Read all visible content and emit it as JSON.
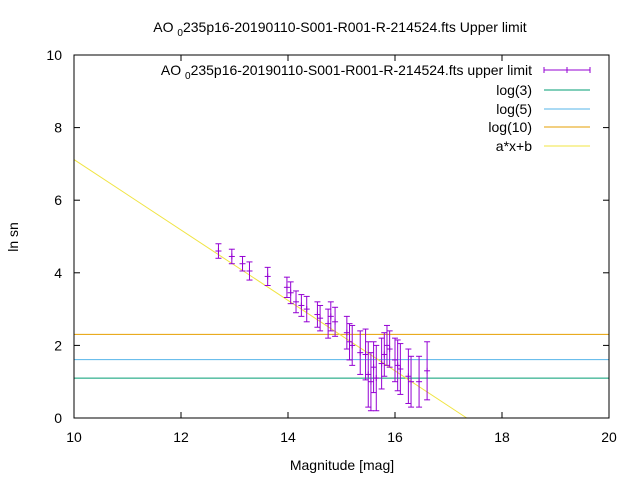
{
  "chart_data": {
    "type": "scatter",
    "title": {
      "prefix": "AO ",
      "subscript": "0",
      "rest": "235p16-20190110-S001-R001-R-214524.fts Upper limit"
    },
    "xlabel": "Magnitude [mag]",
    "ylabel": "ln sn",
    "xlim": [
      10,
      20
    ],
    "ylim": [
      0,
      10
    ],
    "x_ticks": [
      10,
      12,
      14,
      16,
      18,
      20
    ],
    "y_ticks": [
      0,
      2,
      4,
      6,
      8,
      10
    ],
    "grid": false,
    "legend_position": "top-right",
    "series": [
      {
        "name": {
          "prefix": "AO ",
          "subscript": "0",
          "rest": "235p16-20190110-S001-R001-R-214524.fts upper limit"
        },
        "kind": "errorbar",
        "color": "#9400d3",
        "points": [
          {
            "x": 12.7,
            "y": 4.6,
            "err": 0.2
          },
          {
            "x": 12.95,
            "y": 4.45,
            "err": 0.2
          },
          {
            "x": 13.15,
            "y": 4.25,
            "err": 0.2
          },
          {
            "x": 13.28,
            "y": 4.05,
            "err": 0.25
          },
          {
            "x": 13.62,
            "y": 3.9,
            "err": 0.25
          },
          {
            "x": 13.98,
            "y": 3.6,
            "err": 0.28
          },
          {
            "x": 14.05,
            "y": 3.45,
            "err": 0.3
          },
          {
            "x": 14.15,
            "y": 3.2,
            "err": 0.3
          },
          {
            "x": 14.25,
            "y": 3.1,
            "err": 0.3
          },
          {
            "x": 14.35,
            "y": 3.0,
            "err": 0.35
          },
          {
            "x": 14.55,
            "y": 2.85,
            "err": 0.35
          },
          {
            "x": 14.6,
            "y": 2.75,
            "err": 0.35
          },
          {
            "x": 14.75,
            "y": 2.6,
            "err": 0.4
          },
          {
            "x": 14.8,
            "y": 2.8,
            "err": 0.4
          },
          {
            "x": 14.88,
            "y": 2.65,
            "err": 0.4
          },
          {
            "x": 15.1,
            "y": 2.35,
            "err": 0.45
          },
          {
            "x": 15.15,
            "y": 2.1,
            "err": 0.5
          },
          {
            "x": 15.2,
            "y": 2.0,
            "err": 0.55
          },
          {
            "x": 15.35,
            "y": 1.8,
            "err": 0.6
          },
          {
            "x": 15.45,
            "y": 1.75,
            "err": 0.7
          },
          {
            "x": 15.5,
            "y": 1.2,
            "err": 0.9
          },
          {
            "x": 15.55,
            "y": 1.0,
            "err": 0.8
          },
          {
            "x": 15.6,
            "y": 1.4,
            "err": 0.7
          },
          {
            "x": 15.65,
            "y": 1.1,
            "err": 0.9
          },
          {
            "x": 15.75,
            "y": 1.5,
            "err": 0.7
          },
          {
            "x": 15.8,
            "y": 1.75,
            "err": 0.6
          },
          {
            "x": 15.85,
            "y": 2.0,
            "err": 0.55
          },
          {
            "x": 15.9,
            "y": 1.9,
            "err": 0.5
          },
          {
            "x": 16.0,
            "y": 1.6,
            "err": 0.6
          },
          {
            "x": 16.05,
            "y": 1.45,
            "err": 0.7
          },
          {
            "x": 16.1,
            "y": 1.35,
            "err": 0.7
          },
          {
            "x": 16.25,
            "y": 1.15,
            "err": 0.75
          },
          {
            "x": 16.3,
            "y": 1.0,
            "err": 0.7
          },
          {
            "x": 16.45,
            "y": 1.0,
            "err": 0.7
          },
          {
            "x": 16.6,
            "y": 1.3,
            "err": 0.8
          }
        ]
      },
      {
        "name": "log(3)",
        "kind": "hline",
        "color": "#009e73",
        "y": 1.0986
      },
      {
        "name": "log(5)",
        "kind": "hline",
        "color": "#56b4e9",
        "y": 1.6094
      },
      {
        "name": "log(10)",
        "kind": "hline",
        "color": "#e69f00",
        "y": 2.3026
      },
      {
        "name": "a*x+b",
        "kind": "fitline",
        "color": "#f0e442",
        "slope": -0.97,
        "intercept": 16.82
      }
    ]
  }
}
